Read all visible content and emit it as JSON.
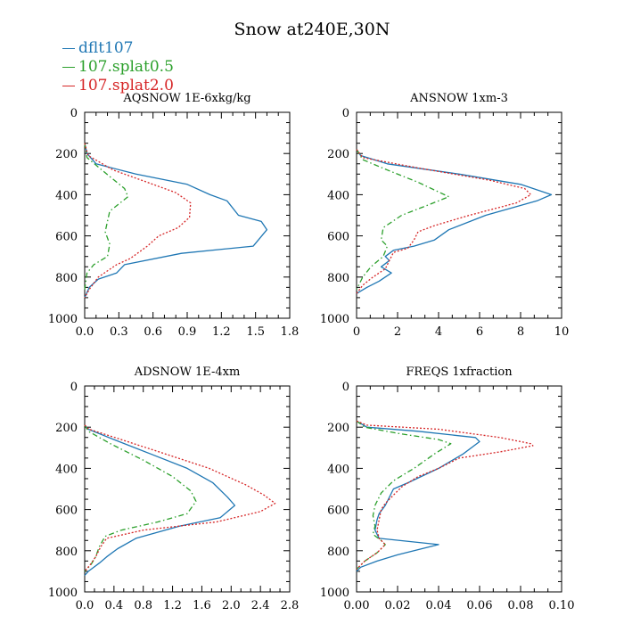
{
  "figure": {
    "title": "Snow at240E,30N",
    "colors": {
      "dflt107": "#1f77b4",
      "splat05": "#2ca02c",
      "splat20": "#d62728"
    }
  },
  "legend": [
    {
      "name": "dflt107",
      "color": "#1f77b4",
      "dash": "solid"
    },
    {
      "name": "107.splat0.5",
      "color": "#2ca02c",
      "dash": "dashdot"
    },
    {
      "name": "107.splat2.0",
      "color": "#d62728",
      "dash": "dotted"
    }
  ],
  "chart_data": [
    {
      "type": "line",
      "title": "AQSNOW  1E-6xkg/kg",
      "xlim": [
        0,
        1.8
      ],
      "ylim": [
        1000,
        0
      ],
      "y_inverted": true,
      "xticks": [
        "0.0",
        "0.3",
        "0.6",
        "0.9",
        "1.2",
        "1.5",
        "1.8"
      ],
      "yticks": [
        "0",
        "200",
        "400",
        "600",
        "800",
        "1000"
      ],
      "series": [
        {
          "name": "dflt107",
          "points": [
            [
              0,
              150
            ],
            [
              0.02,
              200
            ],
            [
              0.1,
              250
            ],
            [
              0.45,
              300
            ],
            [
              0.9,
              350
            ],
            [
              1.1,
              400
            ],
            [
              1.25,
              430
            ],
            [
              1.35,
              500
            ],
            [
              1.55,
              530
            ],
            [
              1.6,
              570
            ],
            [
              1.48,
              650
            ],
            [
              0.85,
              685
            ],
            [
              0.35,
              740
            ],
            [
              0.28,
              780
            ],
            [
              0.12,
              810
            ],
            [
              0.04,
              850
            ],
            [
              0,
              900
            ]
          ]
        },
        {
          "name": "107.splat0.5",
          "points": [
            [
              0,
              150
            ],
            [
              0.02,
              220
            ],
            [
              0.15,
              280
            ],
            [
              0.35,
              370
            ],
            [
              0.38,
              410
            ],
            [
              0.22,
              480
            ],
            [
              0.18,
              580
            ],
            [
              0.22,
              640
            ],
            [
              0.2,
              700
            ],
            [
              0.08,
              740
            ],
            [
              0.02,
              780
            ],
            [
              0,
              860
            ]
          ]
        },
        {
          "name": "107.splat2.0",
          "points": [
            [
              0,
              150
            ],
            [
              0.03,
              210
            ],
            [
              0.25,
              280
            ],
            [
              0.55,
              340
            ],
            [
              0.8,
              390
            ],
            [
              0.93,
              440
            ],
            [
              0.92,
              510
            ],
            [
              0.82,
              560
            ],
            [
              0.65,
              600
            ],
            [
              0.55,
              650
            ],
            [
              0.4,
              710
            ],
            [
              0.28,
              740
            ],
            [
              0.12,
              800
            ],
            [
              0.04,
              860
            ],
            [
              0,
              900
            ]
          ]
        }
      ]
    },
    {
      "type": "line",
      "title": "ANSNOW  1xm-3",
      "xlim": [
        0,
        10
      ],
      "ylim": [
        1000,
        0
      ],
      "y_inverted": true,
      "xticks": [
        "0",
        "2",
        "4",
        "6",
        "8",
        "10"
      ],
      "yticks": [
        "0",
        "200",
        "400",
        "600",
        "800",
        "1000"
      ],
      "series": [
        {
          "name": "dflt107",
          "points": [
            [
              0,
              180
            ],
            [
              0.2,
              210
            ],
            [
              1.5,
              250
            ],
            [
              5,
              300
            ],
            [
              8,
              350
            ],
            [
              9.5,
              400
            ],
            [
              8.8,
              430
            ],
            [
              6.3,
              500
            ],
            [
              4.5,
              570
            ],
            [
              3.8,
              620
            ],
            [
              2.8,
              650
            ],
            [
              1.8,
              670
            ],
            [
              1.4,
              700
            ],
            [
              1.6,
              720
            ],
            [
              1.2,
              750
            ],
            [
              1.7,
              780
            ],
            [
              1.1,
              820
            ],
            [
              0.5,
              850
            ],
            [
              0,
              880
            ]
          ]
        },
        {
          "name": "107.splat0.5",
          "points": [
            [
              0,
              180
            ],
            [
              0.3,
              230
            ],
            [
              1.5,
              280
            ],
            [
              3,
              340
            ],
            [
              4.5,
              410
            ],
            [
              3.5,
              450
            ],
            [
              2.2,
              500
            ],
            [
              1.3,
              560
            ],
            [
              1.2,
              620
            ],
            [
              1.5,
              650
            ],
            [
              1.3,
              700
            ],
            [
              0.7,
              750
            ],
            [
              0.3,
              800
            ],
            [
              0,
              860
            ]
          ]
        },
        {
          "name": "107.splat2.0",
          "points": [
            [
              0,
              180
            ],
            [
              0.3,
              220
            ],
            [
              3,
              270
            ],
            [
              6.5,
              330
            ],
            [
              8.2,
              370
            ],
            [
              8.5,
              400
            ],
            [
              7.8,
              440
            ],
            [
              5.5,
              500
            ],
            [
              3.8,
              550
            ],
            [
              3,
              580
            ],
            [
              2.8,
              620
            ],
            [
              2.5,
              660
            ],
            [
              1.8,
              680
            ],
            [
              1.6,
              720
            ],
            [
              1.4,
              760
            ],
            [
              0.8,
              800
            ],
            [
              0.3,
              840
            ],
            [
              0,
              880
            ]
          ]
        }
      ]
    },
    {
      "type": "line",
      "title": "ADSNOW  1E-4xm",
      "xlim": [
        0,
        2.8
      ],
      "ylim": [
        1000,
        0
      ],
      "y_inverted": true,
      "xticks": [
        "0.0",
        "0.4",
        "0.8",
        "1.2",
        "1.6",
        "2.0",
        "2.4",
        "2.8"
      ],
      "yticks": [
        "0",
        "200",
        "400",
        "600",
        "800",
        "1000"
      ],
      "series": [
        {
          "name": "dflt107",
          "points": [
            [
              0,
              190
            ],
            [
              0.05,
              210
            ],
            [
              0.4,
              260
            ],
            [
              0.9,
              330
            ],
            [
              1.4,
              400
            ],
            [
              1.75,
              470
            ],
            [
              1.95,
              540
            ],
            [
              2.05,
              580
            ],
            [
              1.85,
              640
            ],
            [
              1.3,
              680
            ],
            [
              0.7,
              740
            ],
            [
              0.45,
              790
            ],
            [
              0.3,
              830
            ],
            [
              0.2,
              860
            ],
            [
              0.05,
              900
            ],
            [
              0,
              920
            ]
          ]
        },
        {
          "name": "107.splat0.5",
          "points": [
            [
              0,
              190
            ],
            [
              0.05,
              220
            ],
            [
              0.35,
              280
            ],
            [
              0.8,
              360
            ],
            [
              1.2,
              440
            ],
            [
              1.45,
              510
            ],
            [
              1.52,
              560
            ],
            [
              1.4,
              620
            ],
            [
              1.0,
              660
            ],
            [
              0.5,
              700
            ],
            [
              0.28,
              730
            ],
            [
              0.2,
              780
            ],
            [
              0.15,
              830
            ],
            [
              0.08,
              870
            ],
            [
              0,
              900
            ]
          ]
        },
        {
          "name": "107.splat2.0",
          "points": [
            [
              0,
              190
            ],
            [
              0.06,
              210
            ],
            [
              0.5,
              260
            ],
            [
              1.1,
              330
            ],
            [
              1.7,
              400
            ],
            [
              2.2,
              480
            ],
            [
              2.45,
              530
            ],
            [
              2.6,
              570
            ],
            [
              2.4,
              610
            ],
            [
              1.8,
              660
            ],
            [
              0.8,
              700
            ],
            [
              0.3,
              740
            ],
            [
              0.22,
              780
            ],
            [
              0.15,
              830
            ],
            [
              0.07,
              870
            ],
            [
              0,
              900
            ]
          ]
        }
      ]
    },
    {
      "type": "line",
      "title": "FREQS  1xfraction",
      "xlim": [
        0,
        0.1
      ],
      "ylim": [
        1000,
        0
      ],
      "y_inverted": true,
      "xticks": [
        "0.00",
        "0.02",
        "0.04",
        "0.06",
        "0.08",
        "0.10"
      ],
      "yticks": [
        "0",
        "200",
        "400",
        "600",
        "800",
        "1000"
      ],
      "series": [
        {
          "name": "dflt107",
          "points": [
            [
              0,
              170
            ],
            [
              0.005,
              200
            ],
            [
              0.03,
              220
            ],
            [
              0.058,
              250
            ],
            [
              0.06,
              270
            ],
            [
              0.052,
              330
            ],
            [
              0.04,
              400
            ],
            [
              0.025,
              470
            ],
            [
              0.018,
              500
            ],
            [
              0.014,
              580
            ],
            [
              0.011,
              620
            ],
            [
              0.01,
              650
            ],
            [
              0.009,
              700
            ],
            [
              0.011,
              740
            ],
            [
              0.04,
              770
            ],
            [
              0.02,
              820
            ],
            [
              0.01,
              850
            ],
            [
              0.002,
              880
            ],
            [
              0,
              900
            ]
          ]
        },
        {
          "name": "107.splat0.5",
          "points": [
            [
              0,
              170
            ],
            [
              0.004,
              200
            ],
            [
              0.02,
              230
            ],
            [
              0.04,
              260
            ],
            [
              0.046,
              280
            ],
            [
              0.038,
              330
            ],
            [
              0.028,
              400
            ],
            [
              0.018,
              460
            ],
            [
              0.012,
              520
            ],
            [
              0.009,
              580
            ],
            [
              0.008,
              630
            ],
            [
              0.009,
              680
            ],
            [
              0.008,
              720
            ],
            [
              0.012,
              750
            ],
            [
              0.014,
              770
            ],
            [
              0.01,
              810
            ],
            [
              0.004,
              850
            ],
            [
              0,
              890
            ]
          ]
        },
        {
          "name": "107.splat2.0",
          "points": [
            [
              0,
              170
            ],
            [
              0.005,
              190
            ],
            [
              0.04,
              210
            ],
            [
              0.07,
              250
            ],
            [
              0.085,
              280
            ],
            [
              0.086,
              290
            ],
            [
              0.07,
              320
            ],
            [
              0.05,
              350
            ],
            [
              0.04,
              400
            ],
            [
              0.03,
              440
            ],
            [
              0.022,
              490
            ],
            [
              0.018,
              530
            ],
            [
              0.014,
              570
            ],
            [
              0.012,
              600
            ],
            [
              0.011,
              650
            ],
            [
              0.01,
              700
            ],
            [
              0.011,
              740
            ],
            [
              0.014,
              770
            ],
            [
              0.01,
              810
            ],
            [
              0.004,
              850
            ],
            [
              0,
              890
            ]
          ]
        }
      ]
    }
  ]
}
